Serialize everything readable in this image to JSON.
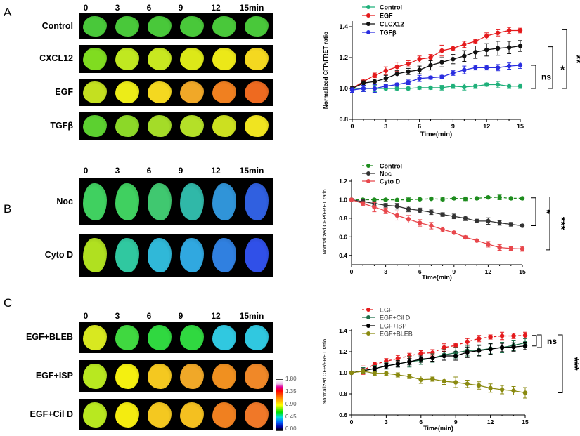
{
  "panels": [
    {
      "letter": "A",
      "times": [
        "0",
        "3",
        "6",
        "9",
        "12",
        "15min"
      ],
      "rows": [
        {
          "label": "Control",
          "colors": [
            "#49c83a",
            "#49c83a",
            "#49c83a",
            "#49c83a",
            "#49c83a",
            "#49c83a"
          ]
        },
        {
          "label": "CXCL12",
          "colors": [
            "#80dc20",
            "#c0e820",
            "#c8e820",
            "#dce818",
            "#ece818",
            "#f4d820"
          ]
        },
        {
          "label": "EGF",
          "colors": [
            "#c4e020",
            "#ecec18",
            "#f4d820",
            "#f0a828",
            "#f08020",
            "#ee6a20"
          ]
        },
        {
          "label": "TGFβ",
          "colors": [
            "#5cd030",
            "#8cd828",
            "#a4dc28",
            "#b4e028",
            "#cce020",
            "#f0e420"
          ]
        }
      ]
    },
    {
      "letter": "B",
      "times": [
        "0",
        "3",
        "6",
        "9",
        "12",
        "15min"
      ],
      "rows": [
        {
          "label": "Noc",
          "colors": [
            "#40d060",
            "#40d060",
            "#40c870",
            "#30b8a8",
            "#3094d8",
            "#3060e0"
          ]
        },
        {
          "label": "Cyto D",
          "colors": [
            "#b0e020",
            "#30c8a0",
            "#30b8d8",
            "#30a8e0",
            "#3080e0",
            "#3050e8"
          ]
        }
      ]
    },
    {
      "letter": "C",
      "times": [
        "0",
        "3",
        "6",
        "9",
        "12",
        "15min"
      ],
      "rows": [
        {
          "label": "EGF+BLEB",
          "colors": [
            "#d8e820",
            "#40d840",
            "#30d840",
            "#30d840",
            "#30c8e0",
            "#30c8e0"
          ]
        },
        {
          "label": "EGF+ISP",
          "colors": [
            "#b8e820",
            "#f4f010",
            "#f4c820",
            "#f0a828",
            "#f09020",
            "#f08828"
          ]
        },
        {
          "label": "EGF+Cil D",
          "colors": [
            "#b8e820",
            "#f4ec10",
            "#f4c820",
            "#f4c020",
            "#f08020",
            "#f07828"
          ]
        }
      ]
    }
  ],
  "colorbar": {
    "labels": [
      "1.80",
      "1.35",
      "0.90",
      "0.45",
      "0.00"
    ]
  },
  "chart_data": [
    {
      "type": "line",
      "xlabel": "Time(min)",
      "ylabel": "Normalized CFP/FRET ratio",
      "xlim": [
        0,
        15
      ],
      "ylim": [
        0.8,
        1.4
      ],
      "xticks": [
        "0",
        "3",
        "6",
        "9",
        "12",
        "15"
      ],
      "yticks": [
        "0.8",
        "1.0",
        "1.2",
        "1.4"
      ],
      "legend": "top-left",
      "x": [
        0,
        1,
        2,
        3,
        4,
        5,
        6,
        7,
        8,
        9,
        10,
        11,
        12,
        13,
        14,
        15
      ],
      "series": [
        {
          "name": "Control",
          "color": "#1fb07a",
          "dashed": false,
          "values": [
            1.0,
            1.0,
            1.0,
            1.0,
            1.0,
            1.0,
            1.005,
            1.005,
            1.005,
            1.015,
            1.01,
            1.015,
            1.025,
            1.025,
            1.015,
            1.015
          ],
          "err": [
            0.01,
            0.02,
            0.02,
            0.015,
            0.01,
            0.015,
            0.01,
            0.01,
            0.015,
            0.015,
            0.02,
            0.015,
            0.01,
            0.02,
            0.015,
            0.015
          ]
        },
        {
          "name": "EGF",
          "color": "#e41a1c",
          "dashed": false,
          "values": [
            1.0,
            1.045,
            1.085,
            1.115,
            1.14,
            1.16,
            1.19,
            1.2,
            1.245,
            1.26,
            1.285,
            1.305,
            1.34,
            1.36,
            1.375,
            1.375
          ],
          "err": [
            0.01,
            0.01,
            0.015,
            0.025,
            0.03,
            0.02,
            0.02,
            0.02,
            0.035,
            0.015,
            0.02,
            0.01,
            0.02,
            0.02,
            0.02,
            0.015
          ]
        },
        {
          "name": "CLCX12",
          "color": "#111111",
          "dashed": false,
          "values": [
            1.0,
            1.035,
            1.045,
            1.065,
            1.095,
            1.11,
            1.12,
            1.15,
            1.17,
            1.19,
            1.21,
            1.235,
            1.25,
            1.26,
            1.265,
            1.275
          ],
          "err": [
            0.01,
            0.015,
            0.015,
            0.02,
            0.02,
            0.02,
            0.025,
            0.03,
            0.03,
            0.03,
            0.035,
            0.04,
            0.04,
            0.045,
            0.04,
            0.035
          ]
        },
        {
          "name": "TGFβ",
          "color": "#2a2ee0",
          "dashed": false,
          "values": [
            0.99,
            1.0,
            1.0,
            1.015,
            1.025,
            1.04,
            1.065,
            1.07,
            1.075,
            1.1,
            1.12,
            1.135,
            1.135,
            1.135,
            1.145,
            1.15
          ],
          "err": [
            0.015,
            0.02,
            0.025,
            0.01,
            0.01,
            0.015,
            0.02,
            0.01,
            0.01,
            0.015,
            0.025,
            0.015,
            0.015,
            0.02,
            0.02,
            0.02
          ]
        }
      ],
      "significance": [
        {
          "label": "ns",
          "from": 1.15,
          "to": 1.0
        },
        {
          "label": "*",
          "from": 1.27,
          "to": 1.0
        },
        {
          "label": "**",
          "from": 1.38,
          "to": 1.0
        }
      ]
    },
    {
      "type": "line",
      "xlabel": "Time(min)",
      "ylabel": "Normalized CFP/FRET ratio",
      "xlim": [
        0,
        15
      ],
      "ylim": [
        0.3,
        1.2
      ],
      "xticks": [
        "0",
        "3",
        "6",
        "9",
        "12",
        "15"
      ],
      "yticks": [
        "0.4",
        "0.6",
        "0.8",
        "1.0",
        "1.2"
      ],
      "legend": "top-left",
      "x": [
        0,
        1,
        2,
        3,
        4,
        5,
        6,
        7,
        8,
        9,
        10,
        11,
        12,
        13,
        14,
        15
      ],
      "series": [
        {
          "name": "Control",
          "color": "#1e8c1e",
          "dashed": true,
          "values": [
            1.0,
            1.0,
            1.0,
            1.0,
            0.998,
            1.0,
            1.005,
            1.01,
            1.005,
            1.015,
            1.01,
            1.015,
            1.025,
            1.025,
            1.015,
            1.015
          ],
          "err": [
            0.005,
            0.01,
            0.01,
            0.01,
            0.01,
            0.02,
            0.01,
            0.01,
            0.015,
            0.015,
            0.02,
            0.015,
            0.01,
            0.025,
            0.015,
            0.015
          ]
        },
        {
          "name": "Noc",
          "color": "#333333",
          "dashed": false,
          "values": [
            1.0,
            0.98,
            0.96,
            0.94,
            0.93,
            0.9,
            0.885,
            0.865,
            0.84,
            0.82,
            0.8,
            0.77,
            0.77,
            0.75,
            0.735,
            0.72
          ],
          "err": [
            0.005,
            0.02,
            0.02,
            0.02,
            0.03,
            0.03,
            0.025,
            0.025,
            0.02,
            0.025,
            0.025,
            0.02,
            0.035,
            0.025,
            0.02,
            0.015
          ]
        },
        {
          "name": "Cyto D",
          "color": "#e8474c",
          "dashed": false,
          "values": [
            1.0,
            0.96,
            0.92,
            0.88,
            0.83,
            0.79,
            0.75,
            0.72,
            0.68,
            0.645,
            0.595,
            0.56,
            0.52,
            0.485,
            0.475,
            0.47
          ],
          "err": [
            0.005,
            0.02,
            0.05,
            0.03,
            0.05,
            0.04,
            0.035,
            0.035,
            0.025,
            0.015,
            0.015,
            0.015,
            0.03,
            0.03,
            0.02,
            0.025
          ]
        }
      ],
      "significance": [
        {
          "label": "*",
          "from": 1.02,
          "to": 0.72
        },
        {
          "label": "***",
          "from": 1.03,
          "to": 0.46
        }
      ]
    },
    {
      "type": "line",
      "xlabel": "Time(min)",
      "ylabel": "Normalized CFP/FRET ratio",
      "xlim": [
        0,
        15
      ],
      "ylim": [
        0.6,
        1.4
      ],
      "xticks": [
        "0",
        "3",
        "6",
        "9",
        "12",
        "15"
      ],
      "yticks": [
        "0.6",
        "0.8",
        "1.0",
        "1.2",
        "1.4"
      ],
      "legend": "top-left",
      "x": [
        0,
        1,
        2,
        3,
        4,
        5,
        6,
        7,
        8,
        9,
        10,
        11,
        12,
        13,
        14,
        15
      ],
      "series": [
        {
          "name": "EGF",
          "color": "#e41a1c",
          "dashed": true,
          "values": [
            1.0,
            1.025,
            1.08,
            1.11,
            1.135,
            1.16,
            1.185,
            1.19,
            1.24,
            1.26,
            1.295,
            1.325,
            1.34,
            1.35,
            1.35,
            1.355
          ],
          "err": [
            0.005,
            0.04,
            0.02,
            0.025,
            0.03,
            0.025,
            0.025,
            0.03,
            0.035,
            0.015,
            0.03,
            0.03,
            0.02,
            0.035,
            0.025,
            0.03
          ]
        },
        {
          "name": "EGF+Cil D",
          "color": "#1f6f4a",
          "dashed": false,
          "values": [
            1.0,
            1.02,
            1.04,
            1.065,
            1.085,
            1.105,
            1.12,
            1.14,
            1.17,
            1.19,
            1.21,
            1.215,
            1.23,
            1.24,
            1.26,
            1.285
          ],
          "err": [
            0.005,
            0.03,
            0.03,
            0.03,
            0.03,
            0.05,
            0.04,
            0.04,
            0.05,
            0.05,
            0.05,
            0.05,
            0.05,
            0.05,
            0.05,
            0.04
          ]
        },
        {
          "name": "EGF+ISP",
          "color": "#000000",
          "dashed": false,
          "values": [
            1.0,
            1.02,
            1.04,
            1.065,
            1.085,
            1.105,
            1.13,
            1.14,
            1.16,
            1.16,
            1.195,
            1.21,
            1.225,
            1.24,
            1.245,
            1.255
          ],
          "err": [
            0.005,
            0.02,
            0.02,
            0.025,
            0.03,
            0.03,
            0.03,
            0.03,
            0.04,
            0.04,
            0.05,
            0.05,
            0.05,
            0.04,
            0.04,
            0.035
          ]
        },
        {
          "name": "EGF+BLEB",
          "color": "#8a8a10",
          "dashed": false,
          "values": [
            1.0,
            1.015,
            0.995,
            0.995,
            0.98,
            0.965,
            0.935,
            0.94,
            0.92,
            0.91,
            0.895,
            0.88,
            0.855,
            0.84,
            0.83,
            0.81
          ],
          "err": [
            0.005,
            0.02,
            0.02,
            0.02,
            0.02,
            0.02,
            0.035,
            0.02,
            0.03,
            0.05,
            0.035,
            0.035,
            0.04,
            0.04,
            0.04,
            0.05
          ]
        }
      ],
      "significance": [
        {
          "label": "",
          "from": 1.355,
          "to": 1.255
        },
        {
          "label": "ns",
          "from": 1.36,
          "to": 1.24
        },
        {
          "label": "***",
          "from": 1.36,
          "to": 0.81
        }
      ]
    }
  ]
}
